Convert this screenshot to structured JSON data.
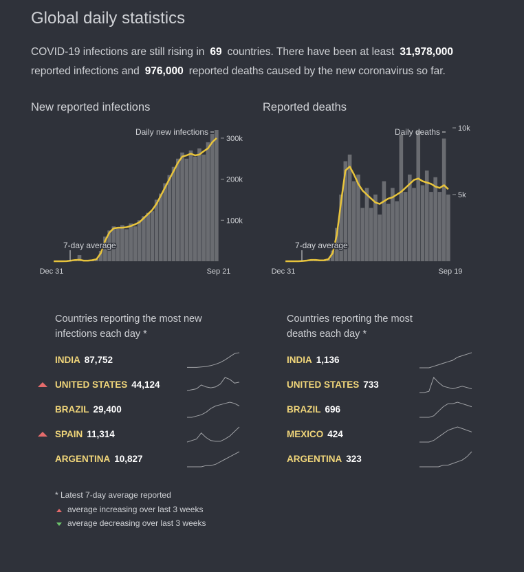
{
  "header": {
    "title": "Global daily statistics",
    "summary": [
      "COVID-19 infections are still rising in",
      "69",
      "countries. There have been at least",
      "31,978,000",
      "reported infections and",
      "976,000",
      "reported deaths caused by the new coronavirus so far."
    ]
  },
  "chart_data": [
    {
      "type": "bar",
      "title": "New reported infections",
      "categories": [
        "Dec 31",
        null,
        null,
        null,
        null,
        null,
        null,
        null,
        null,
        null,
        null,
        null,
        null,
        null,
        null,
        null,
        null,
        null,
        null,
        null,
        null,
        null,
        null,
        null,
        null,
        null,
        null,
        null,
        null,
        null,
        null,
        null,
        null,
        null,
        null,
        null,
        null,
        null,
        "Sep 21"
      ],
      "series": [
        {
          "name": "Daily new infections",
          "color": "#6a6c71",
          "values": [
            0,
            0,
            0,
            200,
            2000,
            3500,
            15000,
            1800,
            1500,
            3000,
            6000,
            25000,
            60000,
            75000,
            85000,
            80000,
            88000,
            78000,
            92000,
            85000,
            100000,
            110000,
            118000,
            122000,
            150000,
            165000,
            190000,
            210000,
            230000,
            250000,
            265000,
            250000,
            270000,
            255000,
            275000,
            260000,
            290000,
            310000,
            320000
          ]
        },
        {
          "name": "7-day average",
          "type": "line",
          "color": "#e8c43c",
          "values": [
            0,
            0,
            0,
            100,
            1500,
            3000,
            3500,
            1500,
            1500,
            2500,
            5000,
            20000,
            50000,
            70000,
            80000,
            82000,
            82000,
            83000,
            86000,
            90000,
            95000,
            105000,
            115000,
            125000,
            140000,
            160000,
            180000,
            200000,
            220000,
            240000,
            255000,
            258000,
            262000,
            258000,
            260000,
            268000,
            275000,
            290000,
            300000
          ]
        }
      ],
      "ylim": [
        0,
        325000
      ],
      "yticks": [
        {
          "value": 100000,
          "label": "100k"
        },
        {
          "value": 200000,
          "label": "200k"
        },
        {
          "value": 300000,
          "label": "300k"
        }
      ]
    },
    {
      "type": "bar",
      "title": "Reported deaths",
      "categories": [
        "Dec 31",
        null,
        null,
        null,
        null,
        null,
        null,
        null,
        null,
        null,
        null,
        null,
        null,
        null,
        null,
        null,
        null,
        null,
        null,
        null,
        null,
        null,
        null,
        null,
        null,
        null,
        null,
        null,
        null,
        null,
        null,
        null,
        null,
        null,
        null,
        null,
        null,
        null,
        "Sep 19"
      ],
      "series": [
        {
          "name": "Daily deaths",
          "color": "#6a6c71",
          "values": [
            0,
            0,
            0,
            0,
            30,
            60,
            120,
            140,
            60,
            80,
            200,
            800,
            2500,
            5000,
            7500,
            8000,
            6000,
            6500,
            4000,
            5500,
            4000,
            5000,
            3500,
            6000,
            4300,
            5500,
            4500,
            9500,
            5200,
            6500,
            5500,
            9800,
            5700,
            6800,
            5200,
            6300,
            5200,
            9200,
            5000
          ]
        },
        {
          "name": "7-day average",
          "type": "line",
          "color": "#e8c43c",
          "values": [
            0,
            0,
            0,
            0,
            20,
            50,
            100,
            100,
            60,
            70,
            150,
            600,
            2000,
            4500,
            6800,
            7100,
            6500,
            5800,
            5300,
            5000,
            4700,
            4400,
            4300,
            4500,
            4700,
            4800,
            5000,
            5200,
            5500,
            5800,
            6100,
            6200,
            6000,
            5900,
            5800,
            5600,
            5500,
            5700,
            5400
          ]
        }
      ],
      "ylim": [
        0,
        10000
      ],
      "yticks": [
        {
          "value": 5000,
          "label": "5k"
        },
        {
          "value": 10000,
          "label": "10k"
        }
      ]
    }
  ],
  "tables": [
    {
      "title_lines": [
        "Countries reporting the most new",
        "infections each day *"
      ],
      "rows": [
        {
          "name": "INDIA",
          "value": "87,752",
          "rising": false,
          "trend": [
            1,
            1,
            1,
            2,
            3,
            5,
            8,
            12,
            18,
            25,
            32,
            34
          ]
        },
        {
          "name": "UNITED STATES",
          "value": "44,124",
          "rising": true,
          "trend": [
            2,
            3,
            4,
            8,
            6,
            5,
            6,
            9,
            16,
            14,
            10,
            11
          ]
        },
        {
          "name": "BRAZIL",
          "value": "29,400",
          "rising": false,
          "trend": [
            0,
            0,
            1,
            2,
            4,
            7,
            9,
            10,
            11,
            12,
            11,
            9
          ]
        },
        {
          "name": "SPAIN",
          "value": "11,314",
          "rising": true,
          "trend": [
            0,
            1,
            2,
            6,
            3,
            1,
            0.5,
            0.5,
            2,
            4,
            7,
            10
          ]
        },
        {
          "name": "ARGENTINA",
          "value": "10,827",
          "rising": false,
          "trend": [
            0,
            0,
            0,
            0,
            1,
            1,
            2,
            4,
            6,
            8,
            10,
            12
          ]
        }
      ]
    },
    {
      "title_lines": [
        "Countries reporting the most",
        "deaths each day *"
      ],
      "rows": [
        {
          "name": "INDIA",
          "value": "1,136",
          "rising": false,
          "trend": [
            0,
            0,
            0,
            1,
            2,
            3,
            4,
            5,
            7,
            8,
            9,
            10
          ]
        },
        {
          "name": "UNITED STATES",
          "value": "733",
          "rising": false,
          "trend": [
            0,
            0,
            1,
            12,
            8,
            5,
            4,
            3,
            4,
            5,
            4,
            3
          ]
        },
        {
          "name": "BRAZIL",
          "value": "696",
          "rising": false,
          "trend": [
            0,
            0,
            0,
            1,
            4,
            7,
            9,
            9,
            10,
            9,
            8,
            7
          ]
        },
        {
          "name": "MEXICO",
          "value": "424",
          "rising": false,
          "trend": [
            0,
            0,
            0,
            1,
            3,
            5,
            7,
            8,
            9,
            8,
            7,
            6
          ]
        },
        {
          "name": "ARGENTINA",
          "value": "323",
          "rising": false,
          "trend": [
            0,
            0,
            0,
            0,
            0,
            1,
            1,
            2,
            3,
            4,
            6,
            9
          ]
        }
      ]
    }
  ],
  "footnotes": {
    "note": "* Latest 7-day average reported",
    "up": "average increasing over last 3 weeks",
    "down": "average decreasing over last 3 weeks"
  }
}
